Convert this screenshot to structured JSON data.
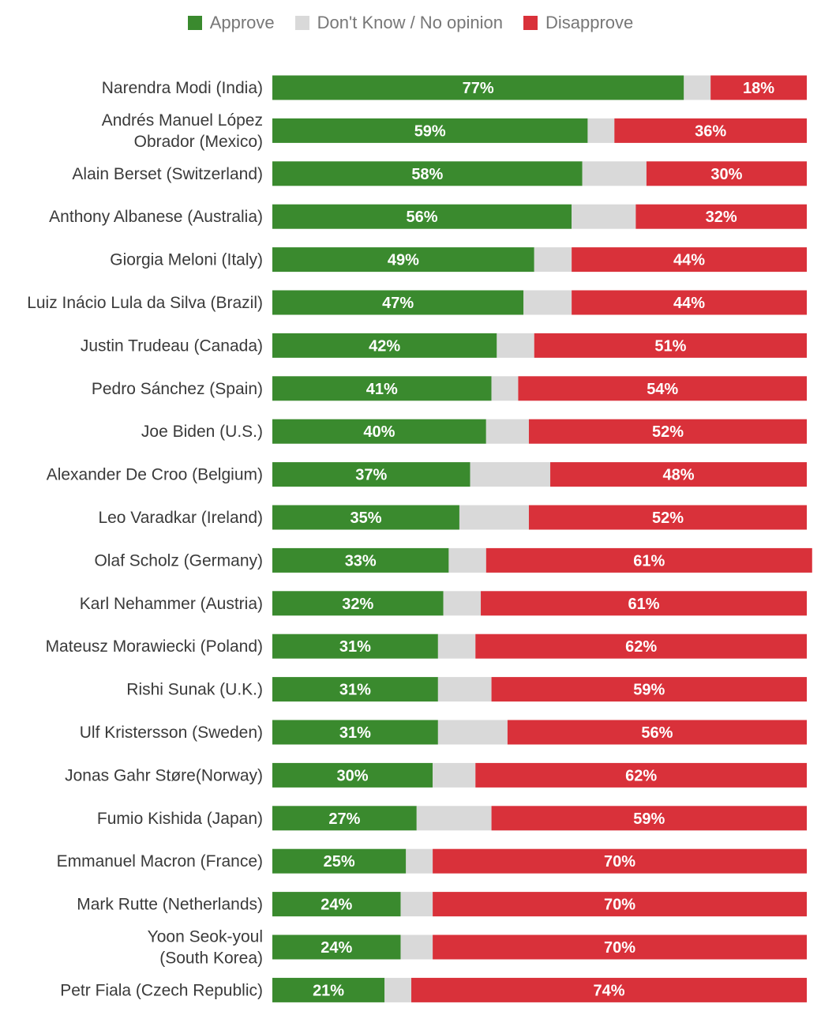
{
  "legend": {
    "approve": "Approve",
    "unknown": "Don't Know / No opinion",
    "disapprove": "Disapprove"
  },
  "colors": {
    "approve": "#3a8a2e",
    "unknown": "#d9d9d9",
    "disapprove": "#d9313a"
  },
  "chart_data": {
    "type": "bar",
    "orientation": "horizontal",
    "stacked": true,
    "xlim": [
      0,
      100
    ],
    "legend_position": "top-center",
    "grid": false,
    "categories": [
      [
        "Narendra Modi (India)"
      ],
      [
        "Andrés Manuel López",
        "Obrador (Mexico)"
      ],
      [
        "Alain Berset (Switzerland)"
      ],
      [
        "Anthony Albanese (Australia)"
      ],
      [
        "Giorgia Meloni (Italy)"
      ],
      [
        "Luiz Inácio Lula da Silva (Brazil)"
      ],
      [
        "Justin Trudeau (Canada)"
      ],
      [
        "Pedro Sánchez (Spain)"
      ],
      [
        "Joe Biden (U.S.)"
      ],
      [
        "Alexander De Croo (Belgium)"
      ],
      [
        "Leo Varadkar (Ireland)"
      ],
      [
        "Olaf Scholz (Germany)"
      ],
      [
        "Karl Nehammer (Austria)"
      ],
      [
        "Mateusz Morawiecki (Poland)"
      ],
      [
        "Rishi Sunak (U.K.)"
      ],
      [
        "Ulf Kristersson (Sweden)"
      ],
      [
        "Jonas Gahr Støre(Norway)"
      ],
      [
        "Fumio Kishida (Japan)"
      ],
      [
        "Emmanuel Macron (France)"
      ],
      [
        "Mark Rutte (Netherlands)"
      ],
      [
        "Yoon Seok-youl",
        "(South Korea)"
      ],
      [
        "Petr Fiala (Czech Republic)"
      ]
    ],
    "series": [
      {
        "name": "Approve",
        "values": [
          77,
          59,
          58,
          56,
          49,
          47,
          42,
          41,
          40,
          37,
          35,
          33,
          32,
          31,
          31,
          31,
          30,
          27,
          25,
          24,
          24,
          21
        ]
      },
      {
        "name": "Don't Know / No opinion",
        "values": [
          5,
          5,
          12,
          12,
          7,
          9,
          7,
          5,
          8,
          15,
          13,
          7,
          7,
          7,
          10,
          13,
          8,
          14,
          5,
          6,
          6,
          5
        ]
      },
      {
        "name": "Disapprove",
        "values": [
          18,
          36,
          30,
          32,
          44,
          44,
          51,
          54,
          52,
          48,
          52,
          61,
          61,
          62,
          59,
          56,
          62,
          59,
          70,
          70,
          70,
          74
        ]
      }
    ],
    "value_labels": {
      "approve": [
        "77%",
        "59%",
        "58%",
        "56%",
        "49%",
        "47%",
        "42%",
        "41%",
        "40%",
        "37%",
        "35%",
        "33%",
        "32%",
        "31%",
        "31%",
        "31%",
        "30%",
        "27%",
        "25%",
        "24%",
        "24%",
        "21%"
      ],
      "disapprove": [
        "18%",
        "36%",
        "30%",
        "32%",
        "44%",
        "44%",
        "51%",
        "54%",
        "52%",
        "48%",
        "52%",
        "61%",
        "61%",
        "62%",
        "59%",
        "56%",
        "62%",
        "59%",
        "70%",
        "70%",
        "70%",
        "74%"
      ]
    }
  }
}
